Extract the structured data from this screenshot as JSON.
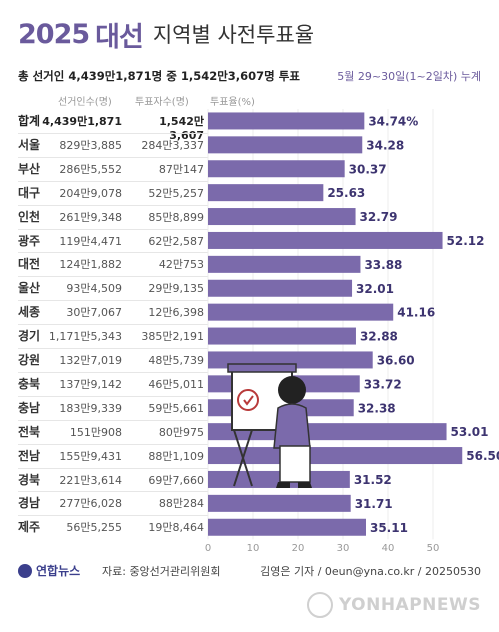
{
  "header": {
    "year": "2025",
    "election": "대선",
    "subject": "지역별 사전투표율",
    "summary": "총 선거인 4,439만1,871명 중 1,542만3,607명 투표",
    "period": "5월 29~30일(1~2일차) 누계"
  },
  "table": {
    "columns": [
      "선거인수(명)",
      "투표자수(명)",
      "투표율(%)"
    ]
  },
  "chart_data": {
    "type": "bar",
    "orientation": "horizontal",
    "title": "",
    "xlim": [
      0,
      60
    ],
    "x_ticks": [
      "0",
      "10",
      "20",
      "30",
      "40",
      "50"
    ],
    "categories": [
      "합계",
      "서울",
      "부산",
      "대구",
      "인천",
      "광주",
      "대전",
      "울산",
      "세종",
      "경기",
      "강원",
      "충북",
      "충남",
      "전북",
      "전남",
      "경북",
      "경남",
      "제주"
    ],
    "voters": [
      "4,439만1,871",
      "829만3,885",
      "286만5,552",
      "204만9,078",
      "261만9,348",
      "119만4,471",
      "124만1,882",
      "93만4,509",
      "30만7,067",
      "1,171만5,343",
      "132만7,019",
      "137만9,142",
      "183만9,339",
      "151만908",
      "155만9,431",
      "221만3,614",
      "277만6,028",
      "56만5,255"
    ],
    "votes": [
      "1,542만3,607",
      "284만3,337",
      "87만147",
      "52만5,257",
      "85만8,899",
      "62만2,587",
      "42만753",
      "29만9,135",
      "12만6,398",
      "385만2,191",
      "48만5,739",
      "46만5,011",
      "59만5,661",
      "80만975",
      "88만1,109",
      "69만7,660",
      "88만284",
      "19만8,464"
    ],
    "values": [
      34.74,
      34.28,
      30.37,
      25.63,
      32.79,
      52.12,
      33.88,
      32.01,
      41.16,
      32.88,
      36.6,
      33.72,
      32.38,
      53.01,
      56.5,
      31.52,
      31.71,
      35.11
    ],
    "value_labels": [
      "34.74%",
      "34.28",
      "30.37",
      "25.63",
      "32.79",
      "52.12",
      "33.88",
      "32.01",
      "41.16",
      "32.88",
      "36.60",
      "33.72",
      "32.38",
      "53.01",
      "56.50",
      "31.52",
      "31.71",
      "35.11"
    ],
    "bar_color": "#7b6aab",
    "label_color": "#3d3470"
  },
  "footer": {
    "logo": "연합뉴스",
    "source": "자료: 중앙선거관리위원회",
    "credit": "김영은 기자 / 0eun@yna.co.kr / 20250530",
    "watermark": "YONHAPNEWS"
  }
}
